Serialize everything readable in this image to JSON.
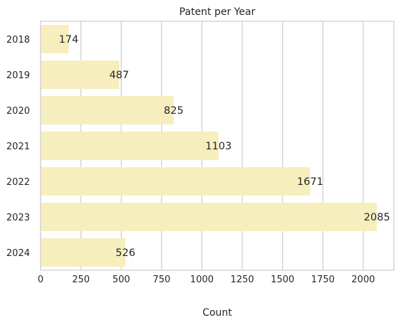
{
  "chart_data": {
    "type": "bar",
    "orientation": "horizontal",
    "title": "Patent per Year",
    "xlabel": "Count",
    "ylabel": "",
    "categories": [
      "2018",
      "2019",
      "2020",
      "2021",
      "2022",
      "2023",
      "2024"
    ],
    "values": [
      174,
      487,
      825,
      1103,
      1671,
      2085,
      526
    ],
    "xlim": [
      0,
      2190
    ],
    "xticks": [
      0,
      250,
      500,
      750,
      1000,
      1250,
      1500,
      1750,
      2000
    ],
    "grid": true,
    "bar_color": "#f7eebe",
    "grid_color": "#cccccc",
    "text_color": "#262626"
  }
}
